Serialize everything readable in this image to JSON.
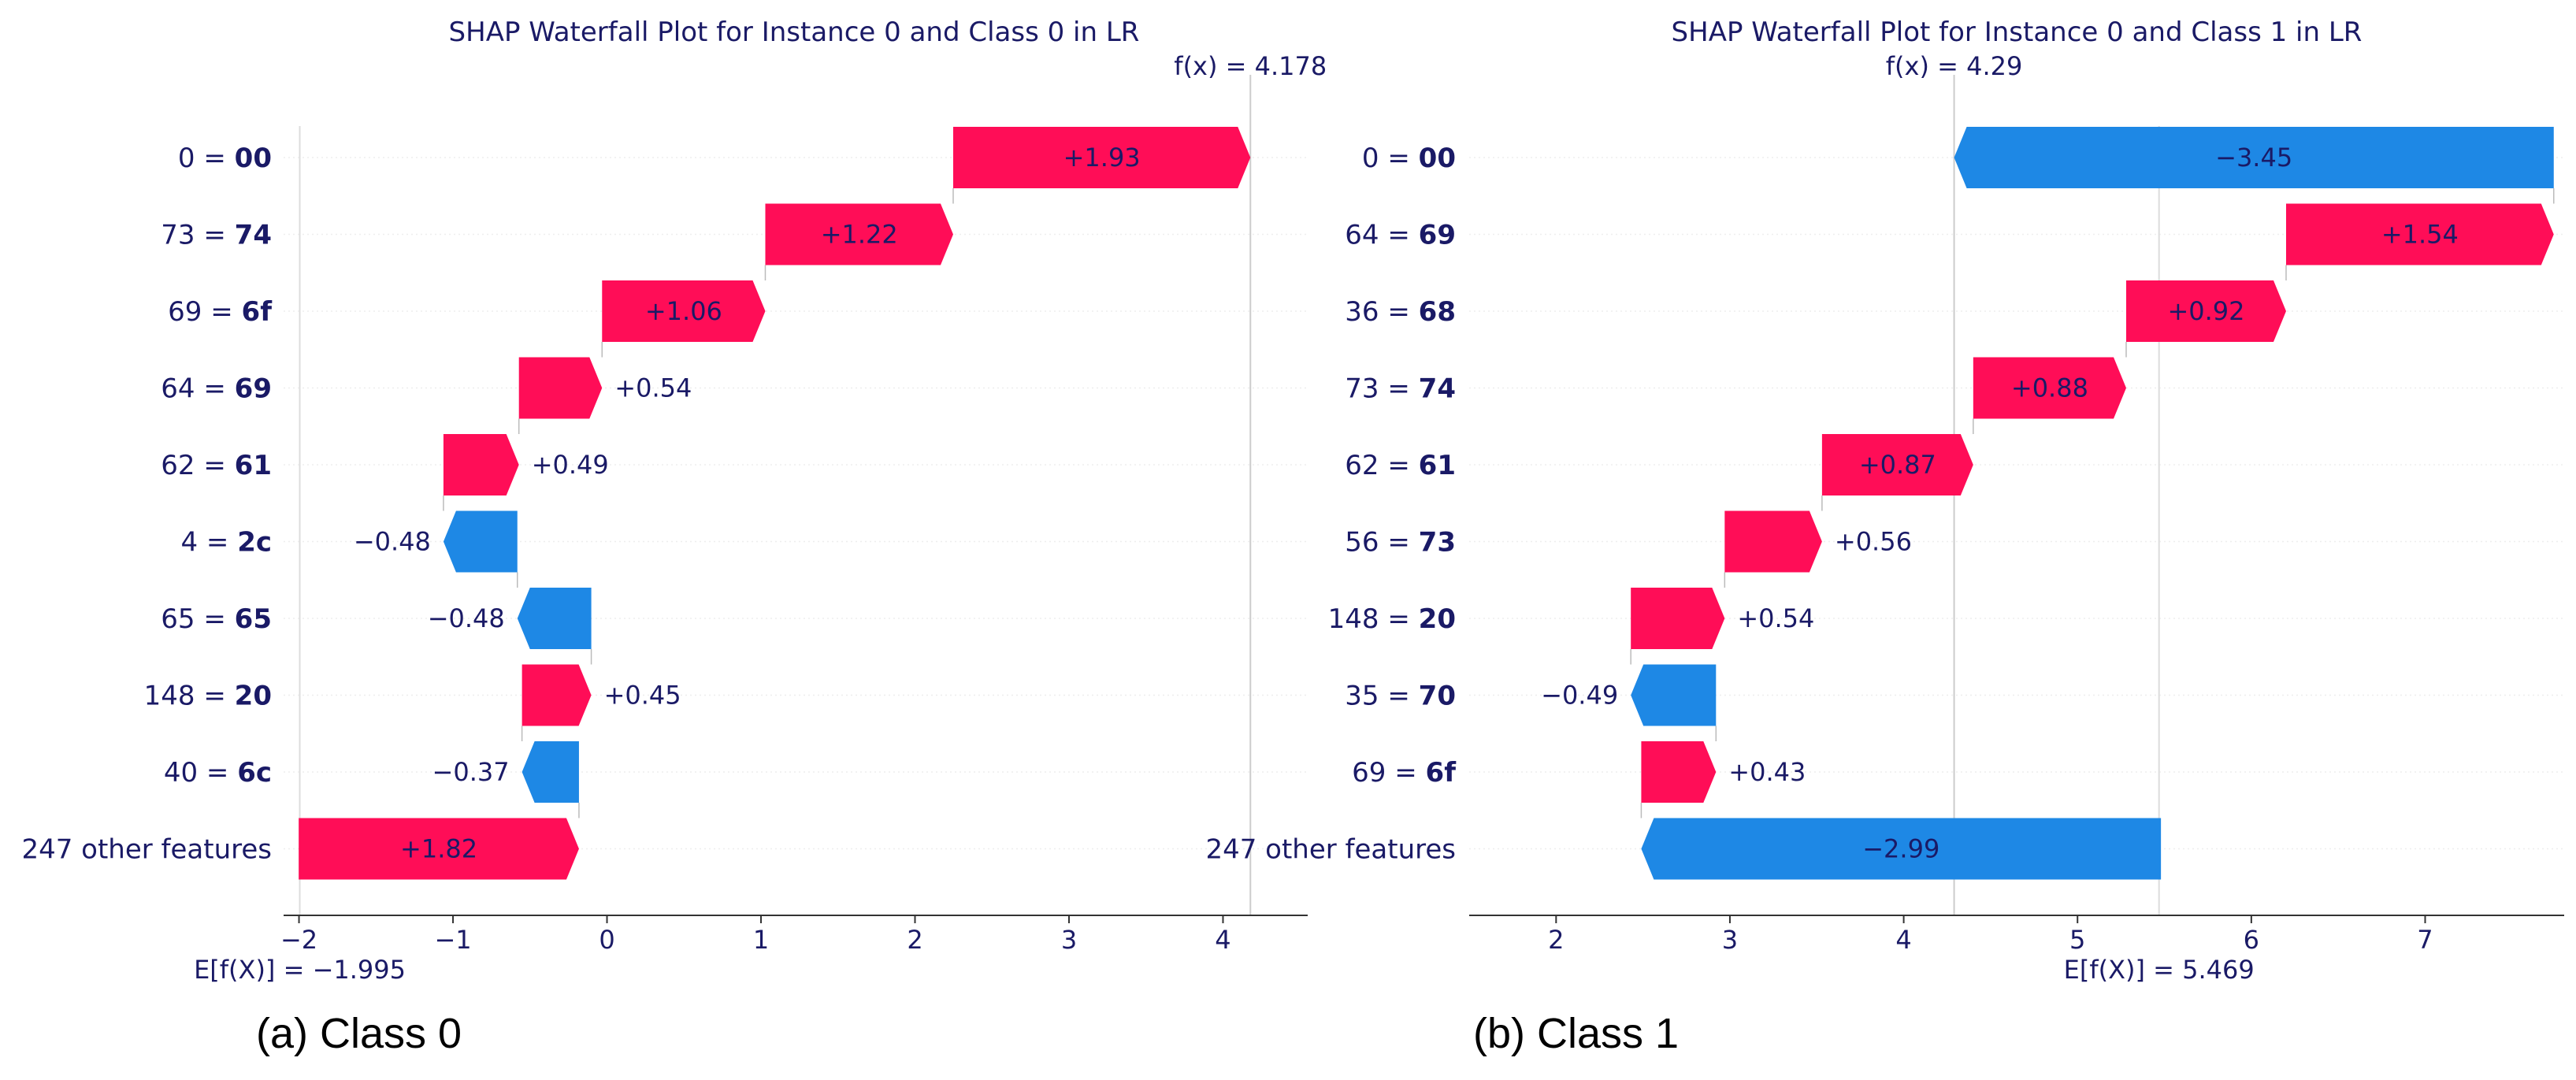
{
  "colors": {
    "positive": "#ff0d57",
    "negative": "#1e88e5",
    "text": "#1a1a66",
    "axis": "#333333"
  },
  "chart_data": [
    {
      "type": "waterfall",
      "title": "SHAP Waterfall Plot for Instance 0 and Class 0 in LR",
      "caption": "(a) Class 0",
      "fx_label": "f(x) = 4.178",
      "fx": 4.178,
      "base_label": "E[f(X)] = −1.995",
      "base": -1.995,
      "xlim": [
        -2.1,
        4.55
      ],
      "xticks": [
        -2,
        -1,
        0,
        1,
        2,
        3,
        4
      ],
      "xtick_labels": [
        "−2",
        "−1",
        "0",
        "1",
        "2",
        "3",
        "4"
      ],
      "features": [
        {
          "feature": "0",
          "value": "00",
          "shap": 1.93,
          "label": "+1.93"
        },
        {
          "feature": "73",
          "value": "74",
          "shap": 1.22,
          "label": "+1.22"
        },
        {
          "feature": "69",
          "value": "6f",
          "shap": 1.06,
          "label": "+1.06"
        },
        {
          "feature": "64",
          "value": "69",
          "shap": 0.54,
          "label": "+0.54"
        },
        {
          "feature": "62",
          "value": "61",
          "shap": 0.49,
          "label": "+0.49"
        },
        {
          "feature": "4",
          "value": "2c",
          "shap": -0.48,
          "label": "−0.48"
        },
        {
          "feature": "65",
          "value": "65",
          "shap": -0.48,
          "label": "−0.48"
        },
        {
          "feature": "148",
          "value": "20",
          "shap": 0.45,
          "label": "+0.45"
        },
        {
          "feature": "40",
          "value": "6c",
          "shap": -0.37,
          "label": "−0.37"
        },
        {
          "feature": "247 other features",
          "value": "",
          "shap": 1.82,
          "label": "+1.82"
        }
      ]
    },
    {
      "type": "waterfall",
      "title": "SHAP Waterfall Plot for Instance 0 and Class 1 in LR",
      "caption": "(b) Class 1",
      "fx_label": "f(x) = 4.29",
      "fx": 4.29,
      "base_label": "E[f(X)] = 5.469",
      "base": 5.469,
      "xlim": [
        1.5,
        7.8
      ],
      "xticks": [
        2,
        3,
        4,
        5,
        6,
        7
      ],
      "xtick_labels": [
        "2",
        "3",
        "4",
        "5",
        "6",
        "7"
      ],
      "features": [
        {
          "feature": "0",
          "value": "00",
          "shap": -3.45,
          "label": "−3.45"
        },
        {
          "feature": "64",
          "value": "69",
          "shap": 1.54,
          "label": "+1.54"
        },
        {
          "feature": "36",
          "value": "68",
          "shap": 0.92,
          "label": "+0.92"
        },
        {
          "feature": "73",
          "value": "74",
          "shap": 0.88,
          "label": "+0.88"
        },
        {
          "feature": "62",
          "value": "61",
          "shap": 0.87,
          "label": "+0.87"
        },
        {
          "feature": "56",
          "value": "73",
          "shap": 0.56,
          "label": "+0.56"
        },
        {
          "feature": "148",
          "value": "20",
          "shap": 0.54,
          "label": "+0.54"
        },
        {
          "feature": "35",
          "value": "70",
          "shap": -0.49,
          "label": "−0.49"
        },
        {
          "feature": "69",
          "value": "6f",
          "shap": 0.43,
          "label": "+0.43"
        },
        {
          "feature": "247 other features",
          "value": "",
          "shap": -2.99,
          "label": "−2.99"
        }
      ]
    }
  ]
}
